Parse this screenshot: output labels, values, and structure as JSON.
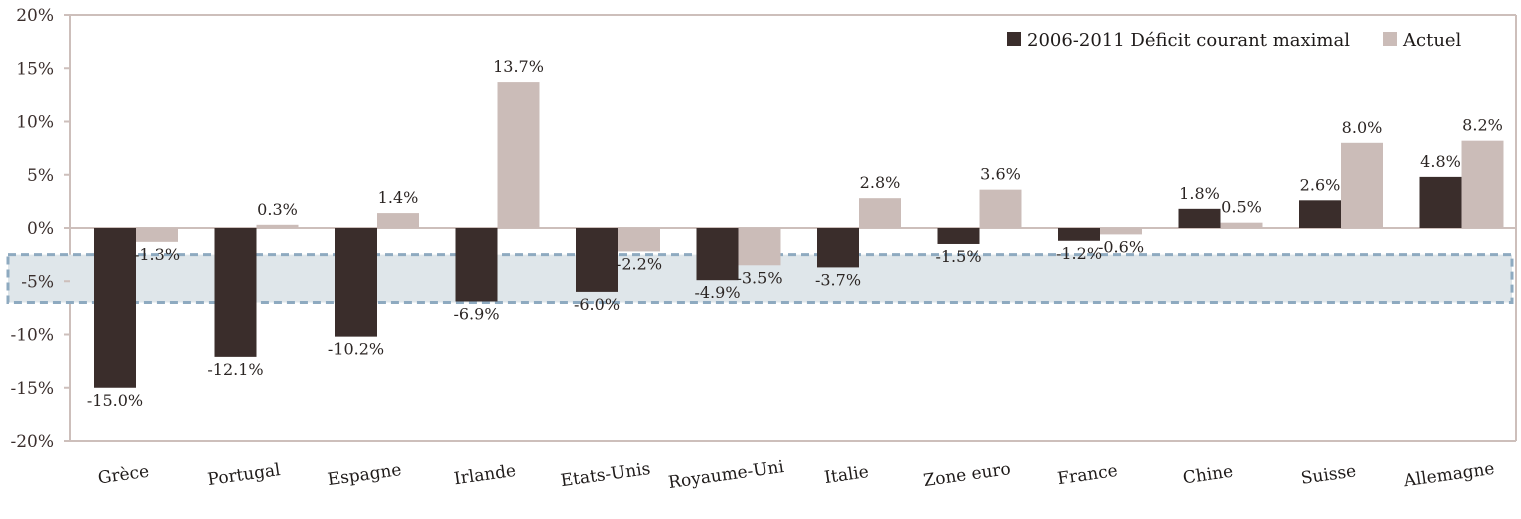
{
  "chart_data": {
    "type": "bar",
    "categories": [
      "Grèce",
      "Portugal",
      "Espagne",
      "Irlande",
      "Etats-Unis",
      "Royaume-Uni",
      "Italie",
      "Zone euro",
      "France",
      "Chine",
      "Suisse",
      "Allemagne"
    ],
    "series": [
      {
        "name": "2006-2011 Déficit courant maximal",
        "color": "#3a2d2b",
        "values": [
          -15.0,
          -12.1,
          -10.2,
          -6.9,
          -6.0,
          -4.9,
          -3.7,
          -1.5,
          -1.2,
          1.8,
          2.6,
          4.8
        ],
        "labels": [
          "-15.0%",
          "-12.1%",
          "-10.2%",
          "-6.9%",
          "-6.0%",
          "-4.9%",
          "-3.7%",
          "-1.5%",
          "-1.2%",
          "1.8%",
          "2.6%",
          "4.8%"
        ]
      },
      {
        "name": "Actuel",
        "color": "#cbbcb8",
        "values": [
          -1.3,
          0.3,
          1.4,
          13.7,
          -2.2,
          -3.5,
          2.8,
          3.6,
          -0.6,
          0.5,
          8.0,
          8.2
        ],
        "labels": [
          "-1.3%",
          "0.3%",
          "1.4%",
          "13.7%",
          "-2.2%",
          "-3.5%",
          "2.8%",
          "3.6%",
          "-0.6%",
          "0.5%",
          "8.0%",
          "8.2%"
        ]
      }
    ],
    "ylim": [
      -20,
      20
    ],
    "yticks": [
      20,
      15,
      10,
      5,
      0,
      -5,
      -10,
      -15,
      -20
    ],
    "ytick_labels": [
      "20%",
      "15%",
      "10%",
      "5%",
      "0%",
      "-5%",
      "-10%",
      "-15%",
      "-20%"
    ],
    "band": {
      "from": -2.5,
      "to": -7.0,
      "color": "#dfe6ea",
      "border": "#8eaac0"
    },
    "legend": "top-right",
    "grid": false
  }
}
